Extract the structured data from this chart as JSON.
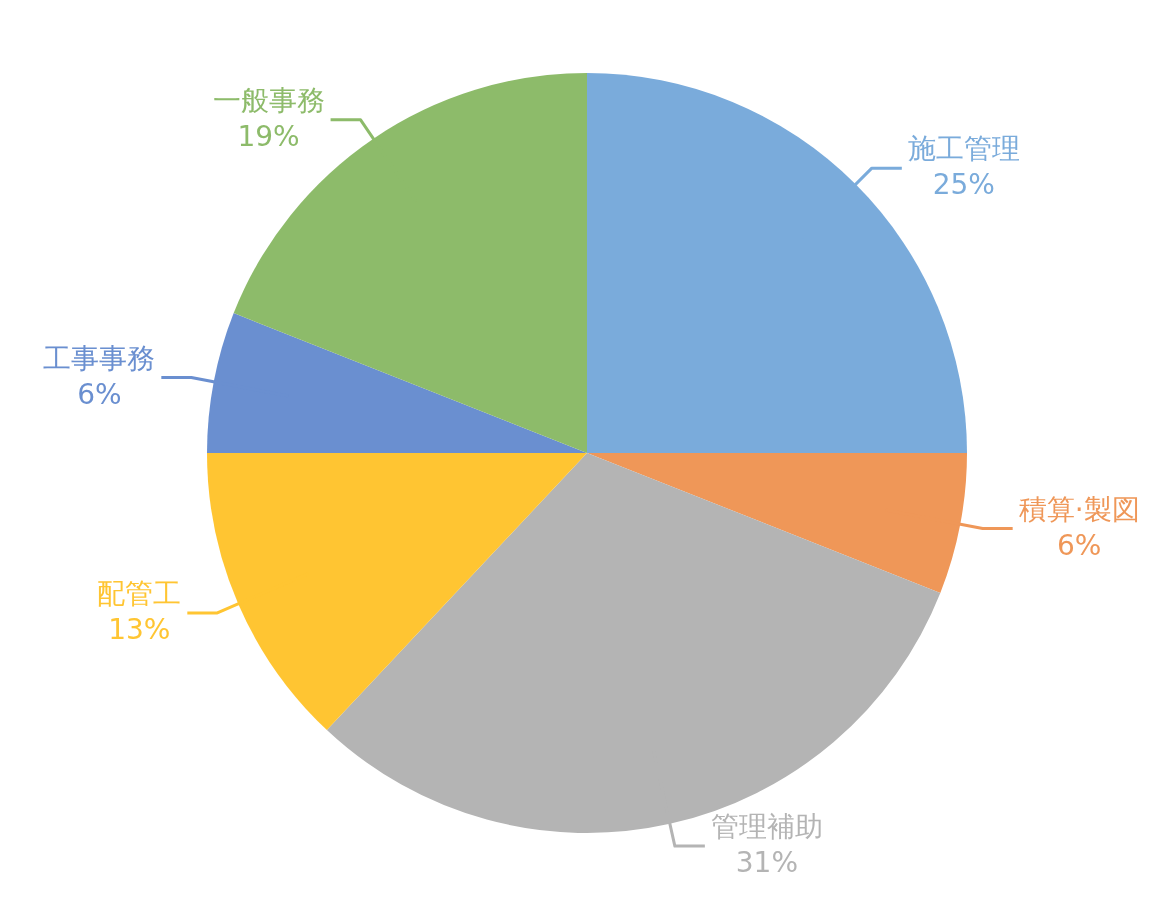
{
  "chart_data": {
    "type": "pie",
    "categories": [
      "施工管理",
      "積算·製図",
      "管理補助",
      "配管工",
      "工事事務",
      "一般事務"
    ],
    "values": [
      25,
      6,
      31,
      13,
      6,
      19
    ],
    "colors": [
      "#7aabdb",
      "#ef9758",
      "#b4b4b4",
      "#ffc532",
      "#6a8fd0",
      "#8dbb6a"
    ],
    "value_labels": [
      "25%",
      "6%",
      "31%",
      "13%",
      "6%",
      "19%"
    ],
    "legend": false
  }
}
